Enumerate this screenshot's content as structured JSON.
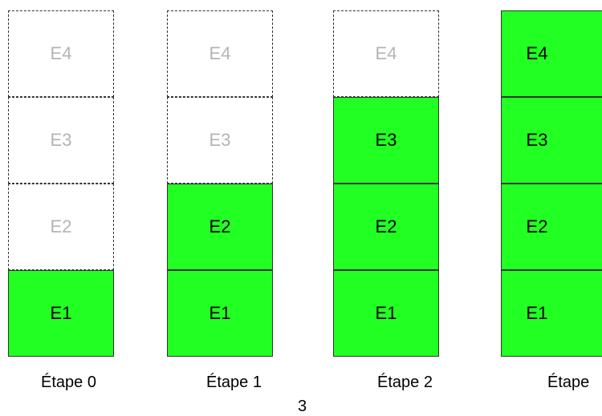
{
  "stages": [
    {
      "caption": "Étape 0",
      "cells": [
        {
          "label": "E4",
          "filled": false
        },
        {
          "label": "E3",
          "filled": false
        },
        {
          "label": "E2",
          "filled": false
        },
        {
          "label": "E1",
          "filled": true
        }
      ]
    },
    {
      "caption": "Étape 1",
      "cells": [
        {
          "label": "E4",
          "filled": false
        },
        {
          "label": "E3",
          "filled": false
        },
        {
          "label": "E2",
          "filled": true
        },
        {
          "label": "E1",
          "filled": true
        }
      ]
    },
    {
      "caption": "Étape 2",
      "cells": [
        {
          "label": "E4",
          "filled": false
        },
        {
          "label": "E3",
          "filled": true
        },
        {
          "label": "E2",
          "filled": true
        },
        {
          "label": "E1",
          "filled": true
        }
      ]
    },
    {
      "caption": "Étape",
      "cells": [
        {
          "label": "E4",
          "filled": true
        },
        {
          "label": "E3",
          "filled": true
        },
        {
          "label": "E2",
          "filled": true
        },
        {
          "label": "E1",
          "filled": true
        }
      ]
    }
  ],
  "page_number": "3",
  "colors": {
    "filled": "#22ff22",
    "empty_text": "#b4b4b4",
    "border": "#333333"
  }
}
